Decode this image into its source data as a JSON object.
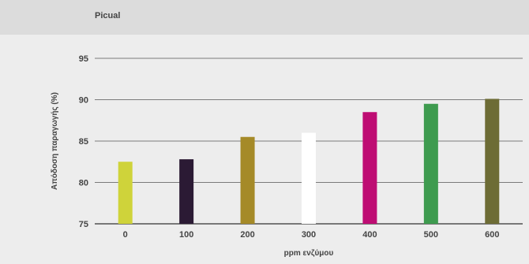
{
  "header": {
    "title": "Picual"
  },
  "chart_data": {
    "type": "bar",
    "title": "Picual",
    "xlabel": "ppm ενζύμου",
    "ylabel": "Απόδοση παραγωγής (%)",
    "categories": [
      "0",
      "100",
      "200",
      "300",
      "400",
      "500",
      "600"
    ],
    "values": [
      82.5,
      82.8,
      85.5,
      86.0,
      88.5,
      89.5,
      90.1
    ],
    "colors": [
      "#cfd33a",
      "#2b1a34",
      "#a58a28",
      "#ffffff",
      "#be0d73",
      "#3e9b4f",
      "#6d6c35"
    ],
    "ylim": [
      75,
      95
    ],
    "yticks": [
      75,
      80,
      85,
      90,
      95
    ],
    "grid": true,
    "legend": "none"
  }
}
